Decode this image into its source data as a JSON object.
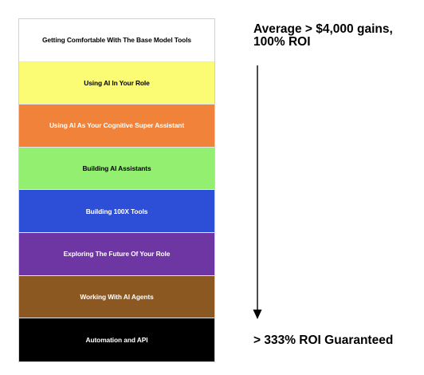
{
  "tiers": [
    {
      "label": "Getting Comfortable With The Base Model Tools",
      "bg": "#ffffff",
      "fg": "#000000"
    },
    {
      "label": "Using AI In Your Role",
      "bg": "#fcfb74",
      "fg": "#000000"
    },
    {
      "label": "Using AI As Your Cognitive Super Assistant",
      "bg": "#f1823a",
      "fg": "#ffffff"
    },
    {
      "label": "Building AI Assistants",
      "bg": "#93ef70",
      "fg": "#000000"
    },
    {
      "label": "Building 100X Tools",
      "bg": "#2d4fd8",
      "fg": "#ffffff"
    },
    {
      "label": "Exploring The Future Of Your Role",
      "bg": "#6e36a2",
      "fg": "#ffffff"
    },
    {
      "label": "Working With AI Agents",
      "bg": "#8b5822",
      "fg": "#ffffff"
    },
    {
      "label": "Automation and API",
      "bg": "#000000",
      "fg": "#ffffff"
    }
  ],
  "annotations": {
    "top": "Average > $4,000 gains, 100% ROI",
    "bottom": "> 333% ROI Guaranteed"
  },
  "arrow": {
    "direction": "down",
    "icon": "arrow-down-icon"
  }
}
